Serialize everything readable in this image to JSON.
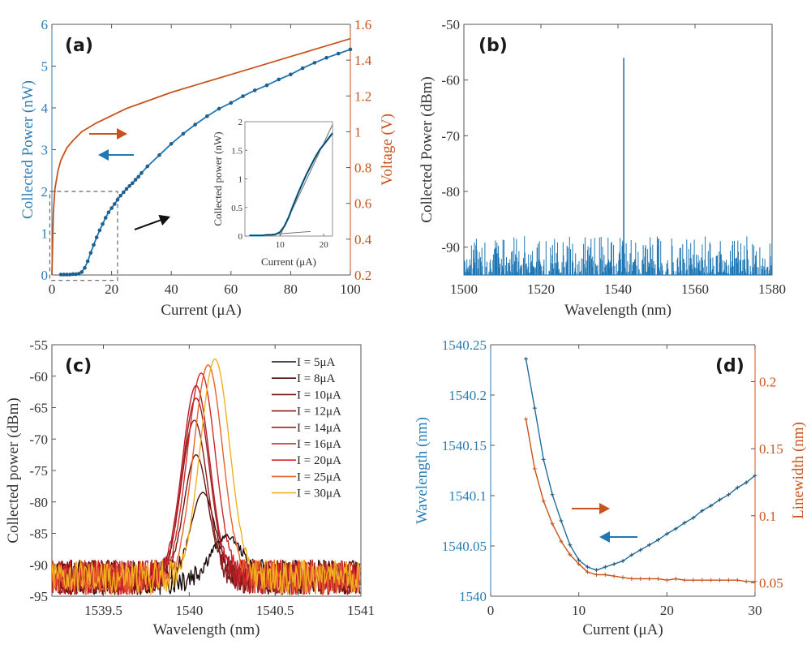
{
  "chart_data": [
    {
      "id": "a",
      "panel_label": "(a)",
      "type": "line",
      "xlabel": "Current (μA)",
      "xlim": [
        0,
        100
      ],
      "xticks": [
        0,
        20,
        40,
        60,
        80,
        100
      ],
      "ylabel_left": "Collected Power (nW)",
      "ylim_left": [
        0,
        6
      ],
      "yticks_left": [
        0,
        1,
        2,
        3,
        4,
        5,
        6
      ],
      "ylabel_right": "Voltage (V)",
      "ylim_right": [
        0.2,
        1.6
      ],
      "yticks_right": [
        "0.2",
        "0.4",
        "0.6",
        "0.8",
        "1",
        "1.2",
        "1.4",
        "1.6"
      ],
      "colors": {
        "power": "#1f77b4",
        "voltage": "#c8531c",
        "axis_left": "#2a7db5",
        "axis_right": "#c8531c"
      },
      "series": [
        {
          "name": "Collected Power",
          "axis": "left",
          "markers": true,
          "x": [
            3,
            4,
            5,
            6,
            7,
            8,
            9,
            10,
            11,
            12,
            13,
            14,
            15,
            16,
            17,
            18,
            19,
            20,
            21,
            22,
            23,
            24,
            25,
            26,
            27,
            28,
            29,
            30,
            32,
            36,
            40,
            44,
            48,
            52,
            56,
            60,
            64,
            68,
            72,
            76,
            80,
            84,
            88,
            92,
            96,
            100
          ],
          "y": [
            0.01,
            0.01,
            0.01,
            0.01,
            0.02,
            0.02,
            0.03,
            0.07,
            0.17,
            0.33,
            0.53,
            0.72,
            0.9,
            1.07,
            1.22,
            1.37,
            1.5,
            1.6,
            1.7,
            1.8,
            1.9,
            1.98,
            2.06,
            2.13,
            2.2,
            2.28,
            2.35,
            2.44,
            2.6,
            2.87,
            3.14,
            3.38,
            3.6,
            3.8,
            3.98,
            4.12,
            4.28,
            4.42,
            4.54,
            4.68,
            4.8,
            4.95,
            5.08,
            5.2,
            5.3,
            5.4
          ]
        },
        {
          "name": "Voltage",
          "axis": "right",
          "markers": false,
          "x": [
            0,
            0.5,
            1,
            2,
            3,
            5,
            7,
            10,
            15,
            20,
            25,
            30,
            40,
            50,
            60,
            70,
            80,
            90,
            100
          ],
          "y": [
            0.2,
            0.55,
            0.68,
            0.78,
            0.84,
            0.91,
            0.95,
            1.0,
            1.05,
            1.09,
            1.13,
            1.16,
            1.22,
            1.27,
            1.32,
            1.37,
            1.42,
            1.47,
            1.52
          ]
        }
      ],
      "annotations": [
        {
          "type": "arrow",
          "direction": "right",
          "color": "#c8531c",
          "meaning": "voltage-axis"
        },
        {
          "type": "arrow",
          "direction": "left",
          "color": "#1f77b4",
          "meaning": "power-axis"
        },
        {
          "type": "arrow",
          "direction": "up-right",
          "color": "#111111",
          "meaning": "zoom-to-inset"
        },
        {
          "type": "dashed-box",
          "x_range": [
            0,
            22
          ],
          "y_range": [
            0,
            2
          ]
        }
      ],
      "inset": {
        "xlabel": "Current (μA)",
        "ylabel": "Collected power (nW)",
        "xlim": [
          2,
          22
        ],
        "xticks": [
          10,
          20
        ],
        "ylim": [
          0,
          2
        ],
        "yticks": [
          "0",
          "0.5",
          "1",
          "1.5",
          "2"
        ],
        "data": {
          "x": [
            3,
            4,
            5,
            6,
            7,
            8,
            9,
            10,
            11,
            12,
            13,
            14,
            15,
            16,
            17,
            18,
            19,
            20,
            21,
            22
          ],
          "y": [
            0.01,
            0.01,
            0.01,
            0.01,
            0.02,
            0.02,
            0.03,
            0.07,
            0.17,
            0.33,
            0.53,
            0.72,
            0.9,
            1.07,
            1.22,
            1.37,
            1.5,
            1.6,
            1.7,
            1.8
          ]
        },
        "fit_lines": [
          {
            "x": [
              3,
              17
            ],
            "y": [
              0.0,
              0.08
            ]
          },
          {
            "x": [
              10,
              22
            ],
            "y": [
              -0.05,
              1.95
            ]
          }
        ]
      }
    },
    {
      "id": "b",
      "panel_label": "(b)",
      "type": "bar",
      "xlabel": "Wavelength (nm)",
      "ylabel": "Collected Power (dBm)",
      "xlim": [
        1500,
        1580
      ],
      "xticks": [
        1500,
        1520,
        1540,
        1560,
        1580
      ],
      "ylim": [
        -95,
        -50
      ],
      "yticks": [
        -90,
        -80,
        -70,
        -60,
        -50
      ],
      "color": "#1f77b4",
      "peak": {
        "x": 1541.5,
        "y": -56
      },
      "noise_floor": -95,
      "noise_range": [
        -95,
        -88
      ]
    },
    {
      "id": "c",
      "panel_label": "(c)",
      "type": "line",
      "xlabel": "Wavelength (nm)",
      "ylabel": "Collected power (dBm)",
      "xlim": [
        1539.2,
        1541
      ],
      "xticks": [
        1539.5,
        1540,
        1540.5,
        1541
      ],
      "ylim": [
        -95,
        -55
      ],
      "yticks": [
        -95,
        -90,
        -85,
        -80,
        -75,
        -70,
        -65,
        -60,
        -55
      ],
      "legend_position": "top-right",
      "noise_floor": -92,
      "series": [
        {
          "name": "I = 5μA",
          "color": "#1a0a0a",
          "peak_x": 1540.22,
          "peak_y": -85.5,
          "width": 0.09
        },
        {
          "name": "I = 8μA",
          "color": "#4a0a0a",
          "peak_x": 1540.08,
          "peak_y": -78.5,
          "width": 0.07
        },
        {
          "name": "I = 10μA",
          "color": "#6e1414",
          "peak_x": 1540.04,
          "peak_y": -72.5,
          "width": 0.07
        },
        {
          "name": "I = 12μA",
          "color": "#8a1c1c",
          "peak_x": 1540.03,
          "peak_y": -67.0,
          "width": 0.075
        },
        {
          "name": "I = 14μA",
          "color": "#a01e24",
          "peak_x": 1540.04,
          "peak_y": -63.5,
          "width": 0.078
        },
        {
          "name": "I = 16μA",
          "color": "#b81e26",
          "peak_x": 1540.04,
          "peak_y": -61.5,
          "width": 0.08
        },
        {
          "name": "I = 20μA",
          "color": "#d0282a",
          "peak_x": 1540.07,
          "peak_y": -59.5,
          "width": 0.082
        },
        {
          "name": "I = 25μA",
          "color": "#e8602a",
          "peak_x": 1540.11,
          "peak_y": -58.2,
          "width": 0.084
        },
        {
          "name": "I = 30μA",
          "color": "#f0b020",
          "peak_x": 1540.15,
          "peak_y": -57.3,
          "width": 0.085
        }
      ]
    },
    {
      "id": "d",
      "panel_label": "(d)",
      "type": "line",
      "xlabel": "Current (μA)",
      "xlim": [
        0,
        30
      ],
      "xticks": [
        0,
        10,
        20,
        30
      ],
      "ylabel_left": "Wavelength (nm)",
      "ylim_left": [
        1540,
        1540.25
      ],
      "yticks_left": [
        "1540",
        "1540.05",
        "1540.1",
        "1540.15",
        "1540.2",
        "1540.25"
      ],
      "ylabel_right": "Linewidth (nm)",
      "ylim_right": [
        0.04,
        0.2275
      ],
      "yticks_right": [
        "0.05",
        "0.1",
        "0.15",
        "0.2"
      ],
      "colors": {
        "wavelength": "#1f6f9c",
        "linewidth": "#c8531c",
        "axis_left": "#2a7db5",
        "axis_right": "#c8531c"
      },
      "series": [
        {
          "name": "Wavelength",
          "axis": "left",
          "x": [
            4,
            5,
            6,
            7,
            8,
            9,
            10,
            11,
            12,
            13,
            14,
            15,
            16,
            17,
            18,
            19,
            20,
            21,
            22,
            23,
            24,
            25,
            26,
            27,
            28,
            29,
            30
          ],
          "y": [
            1540.236,
            1540.187,
            1540.136,
            1540.101,
            1540.075,
            1540.051,
            1540.036,
            1540.029,
            1540.026,
            1540.029,
            1540.032,
            1540.035,
            1540.041,
            1540.046,
            1540.051,
            1540.056,
            1540.062,
            1540.067,
            1540.073,
            1540.078,
            1540.085,
            1540.09,
            1540.096,
            1540.101,
            1540.108,
            1540.113,
            1540.12
          ]
        },
        {
          "name": "Linewidth",
          "axis": "right",
          "x": [
            4,
            5,
            6,
            7,
            8,
            9,
            10,
            11,
            12,
            13,
            14,
            15,
            16,
            17,
            18,
            19,
            20,
            21,
            22,
            23,
            24,
            25,
            26,
            27,
            28,
            29,
            30
          ],
          "y": [
            0.172,
            0.135,
            0.111,
            0.094,
            0.081,
            0.071,
            0.064,
            0.058,
            0.056,
            0.056,
            0.055,
            0.054,
            0.053,
            0.053,
            0.053,
            0.053,
            0.052,
            0.053,
            0.052,
            0.052,
            0.052,
            0.052,
            0.052,
            0.052,
            0.052,
            0.051,
            0.051
          ]
        }
      ],
      "annotations": [
        {
          "type": "arrow",
          "direction": "right",
          "color": "#c8531c",
          "meaning": "linewidth-axis"
        },
        {
          "type": "arrow",
          "direction": "left",
          "color": "#1f77b4",
          "meaning": "wavelength-axis"
        }
      ]
    }
  ]
}
